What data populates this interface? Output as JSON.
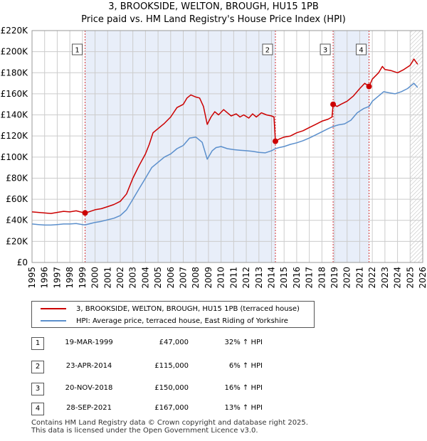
{
  "title_line1": "3, BROOKSIDE, WELTON, BROUGH, HU15 1PB",
  "title_line2": "Price paid vs. HM Land Registry's House Price Index (HPI)",
  "colors": {
    "property": "#cc0000",
    "hpi": "#5b8fcc",
    "shade": "#e8eef9",
    "grid": "#cccccc",
    "marker_line": "#cc0000"
  },
  "chart_data": {
    "type": "line",
    "xlim": [
      1995,
      2026
    ],
    "ylim": [
      0,
      220000
    ],
    "x_ticks": [
      "1995",
      "1996",
      "1997",
      "1998",
      "1999",
      "2000",
      "2001",
      "2002",
      "2003",
      "2004",
      "2005",
      "2006",
      "2007",
      "2008",
      "2009",
      "2010",
      "2011",
      "2012",
      "2013",
      "2014",
      "2015",
      "2016",
      "2017",
      "2018",
      "2019",
      "2020",
      "2021",
      "2022",
      "2023",
      "2024",
      "2025",
      "2026"
    ],
    "y_ticks": [
      {
        "value": 0,
        "label": "£0"
      },
      {
        "value": 20000,
        "label": "£20K"
      },
      {
        "value": 40000,
        "label": "£40K"
      },
      {
        "value": 60000,
        "label": "£60K"
      },
      {
        "value": 80000,
        "label": "£80K"
      },
      {
        "value": 100000,
        "label": "£100K"
      },
      {
        "value": 120000,
        "label": "£120K"
      },
      {
        "value": 140000,
        "label": "£140K"
      },
      {
        "value": 160000,
        "label": "£160K"
      },
      {
        "value": 180000,
        "label": "£180K"
      },
      {
        "value": 200000,
        "label": "£200K"
      },
      {
        "value": 220000,
        "label": "£220K"
      }
    ],
    "shaded_ranges": [
      [
        1999.21,
        2014.31
      ],
      [
        2018.89,
        2021.74
      ]
    ],
    "hatch_from": 2025.0,
    "series": [
      {
        "name": "3, BROOKSIDE, WELTON, BROUGH, HU15 1PB (terraced house)",
        "color": "#cc0000",
        "points": [
          [
            1995.0,
            48000
          ],
          [
            1995.5,
            47500
          ],
          [
            1996.0,
            47000
          ],
          [
            1996.5,
            46500
          ],
          [
            1997.0,
            47500
          ],
          [
            1997.5,
            48500
          ],
          [
            1998.0,
            48000
          ],
          [
            1998.5,
            49000
          ],
          [
            1999.0,
            47500
          ],
          [
            1999.21,
            47000
          ],
          [
            1999.5,
            48000
          ],
          [
            2000.0,
            50000
          ],
          [
            2000.5,
            51000
          ],
          [
            2001.0,
            53000
          ],
          [
            2001.5,
            55000
          ],
          [
            2002.0,
            58000
          ],
          [
            2002.5,
            65000
          ],
          [
            2003.0,
            80000
          ],
          [
            2003.5,
            92000
          ],
          [
            2004.0,
            103000
          ],
          [
            2004.3,
            112000
          ],
          [
            2004.6,
            123000
          ],
          [
            2005.0,
            127000
          ],
          [
            2005.5,
            132000
          ],
          [
            2006.0,
            138000
          ],
          [
            2006.5,
            147000
          ],
          [
            2007.0,
            150000
          ],
          [
            2007.3,
            156000
          ],
          [
            2007.6,
            159000
          ],
          [
            2008.0,
            157000
          ],
          [
            2008.3,
            156000
          ],
          [
            2008.6,
            148000
          ],
          [
            2008.9,
            131000
          ],
          [
            2009.2,
            138000
          ],
          [
            2009.5,
            143000
          ],
          [
            2009.8,
            140000
          ],
          [
            2010.2,
            145000
          ],
          [
            2010.5,
            142000
          ],
          [
            2010.8,
            139000
          ],
          [
            2011.2,
            141000
          ],
          [
            2011.5,
            138000
          ],
          [
            2011.8,
            140000
          ],
          [
            2012.2,
            137000
          ],
          [
            2012.5,
            141000
          ],
          [
            2012.8,
            138000
          ],
          [
            2013.2,
            142000
          ],
          [
            2013.6,
            140000
          ],
          [
            2014.0,
            139000
          ],
          [
            2014.2,
            138000
          ],
          [
            2014.31,
            115000
          ],
          [
            2014.6,
            117000
          ],
          [
            2015.0,
            119000
          ],
          [
            2015.5,
            120000
          ],
          [
            2016.0,
            123000
          ],
          [
            2016.5,
            125000
          ],
          [
            2017.0,
            128000
          ],
          [
            2017.5,
            131000
          ],
          [
            2018.0,
            134000
          ],
          [
            2018.5,
            136000
          ],
          [
            2018.8,
            138000
          ],
          [
            2018.89,
            150000
          ],
          [
            2019.2,
            148000
          ],
          [
            2019.5,
            150000
          ],
          [
            2020.0,
            153000
          ],
          [
            2020.5,
            158000
          ],
          [
            2021.0,
            165000
          ],
          [
            2021.4,
            170000
          ],
          [
            2021.74,
            167000
          ],
          [
            2022.0,
            174000
          ],
          [
            2022.5,
            180000
          ],
          [
            2022.8,
            186000
          ],
          [
            2023.0,
            183000
          ],
          [
            2023.5,
            182000
          ],
          [
            2024.0,
            180000
          ],
          [
            2024.5,
            183000
          ],
          [
            2025.0,
            187000
          ],
          [
            2025.3,
            193000
          ],
          [
            2025.6,
            188000
          ]
        ]
      },
      {
        "name": "HPI: Average price, terraced house, East Riding of Yorkshire",
        "color": "#5b8fcc",
        "points": [
          [
            1995.0,
            36500
          ],
          [
            1995.5,
            36000
          ],
          [
            1996.0,
            35500
          ],
          [
            1996.5,
            35500
          ],
          [
            1997.0,
            36000
          ],
          [
            1997.5,
            36500
          ],
          [
            1998.0,
            36500
          ],
          [
            1998.5,
            37000
          ],
          [
            1999.0,
            36000
          ],
          [
            1999.21,
            35600
          ],
          [
            1999.5,
            36500
          ],
          [
            2000.0,
            38000
          ],
          [
            2000.5,
            39000
          ],
          [
            2001.0,
            40500
          ],
          [
            2001.5,
            42000
          ],
          [
            2002.0,
            44500
          ],
          [
            2002.5,
            50000
          ],
          [
            2003.0,
            60000
          ],
          [
            2003.5,
            70000
          ],
          [
            2004.0,
            80000
          ],
          [
            2004.5,
            90000
          ],
          [
            2005.0,
            95000
          ],
          [
            2005.5,
            100000
          ],
          [
            2006.0,
            103000
          ],
          [
            2006.5,
            108000
          ],
          [
            2007.0,
            111000
          ],
          [
            2007.5,
            118000
          ],
          [
            2008.0,
            119000
          ],
          [
            2008.5,
            114000
          ],
          [
            2008.9,
            98000
          ],
          [
            2009.3,
            106000
          ],
          [
            2009.6,
            109000
          ],
          [
            2010.0,
            110000
          ],
          [
            2010.5,
            108000
          ],
          [
            2011.0,
            107000
          ],
          [
            2011.5,
            106500
          ],
          [
            2012.0,
            106000
          ],
          [
            2012.5,
            105500
          ],
          [
            2013.0,
            104500
          ],
          [
            2013.5,
            104000
          ],
          [
            2014.0,
            106000
          ],
          [
            2014.31,
            108000
          ],
          [
            2014.6,
            109000
          ],
          [
            2015.0,
            110000
          ],
          [
            2015.5,
            112000
          ],
          [
            2016.0,
            113500
          ],
          [
            2016.5,
            115500
          ],
          [
            2017.0,
            118000
          ],
          [
            2017.5,
            121000
          ],
          [
            2018.0,
            124000
          ],
          [
            2018.5,
            127000
          ],
          [
            2018.89,
            129000
          ],
          [
            2019.3,
            130500
          ],
          [
            2019.8,
            131500
          ],
          [
            2020.3,
            135000
          ],
          [
            2020.8,
            142000
          ],
          [
            2021.3,
            146000
          ],
          [
            2021.74,
            148000
          ],
          [
            2022.0,
            153000
          ],
          [
            2022.5,
            158000
          ],
          [
            2022.9,
            162000
          ],
          [
            2023.3,
            161000
          ],
          [
            2023.8,
            160000
          ],
          [
            2024.3,
            162000
          ],
          [
            2024.8,
            165000
          ],
          [
            2025.3,
            170000
          ],
          [
            2025.6,
            166000
          ]
        ]
      }
    ],
    "sales": [
      {
        "label": "1",
        "x": 1999.21,
        "y": 47000
      },
      {
        "label": "2",
        "x": 2014.31,
        "y": 115000
      },
      {
        "label": "3",
        "x": 2018.89,
        "y": 150000
      },
      {
        "label": "4",
        "x": 2021.74,
        "y": 167000
      }
    ]
  },
  "legend": {
    "property_label": "3, BROOKSIDE, WELTON, BROUGH, HU15 1PB (terraced house)",
    "hpi_label": "HPI: Average price, terraced house, East Riding of Yorkshire"
  },
  "transactions": [
    {
      "num": "1",
      "date": "19-MAR-1999",
      "price": "£47,000",
      "hpi": "32% ↑ HPI"
    },
    {
      "num": "2",
      "date": "23-APR-2014",
      "price": "£115,000",
      "hpi": "6% ↑ HPI"
    },
    {
      "num": "3",
      "date": "20-NOV-2018",
      "price": "£150,000",
      "hpi": "16% ↑ HPI"
    },
    {
      "num": "4",
      "date": "28-SEP-2021",
      "price": "£167,000",
      "hpi": "13% ↑ HPI"
    }
  ],
  "footer": {
    "line1": "Contains HM Land Registry data © Crown copyright and database right 2025.",
    "line2": "This data is licensed under the Open Government Licence v3.0."
  }
}
